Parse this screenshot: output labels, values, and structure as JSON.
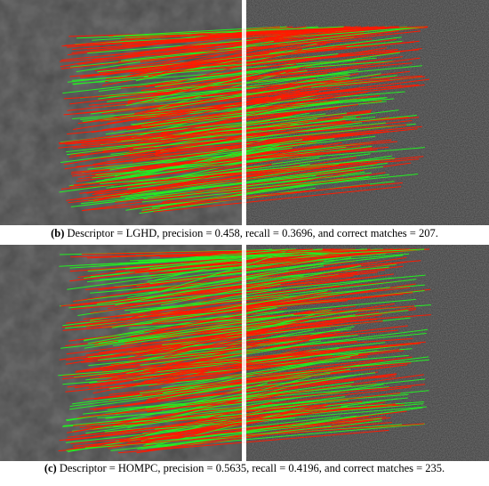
{
  "panels": [
    {
      "label": "(b)",
      "caption": "Descriptor = LGHD, precision = 0.458, recall = 0.3696, and correct matches = 207."
    },
    {
      "label": "(c)",
      "caption": "Descriptor = HOMPC, precision = 0.5635, recall = 0.4196, and correct matches = 235."
    }
  ]
}
